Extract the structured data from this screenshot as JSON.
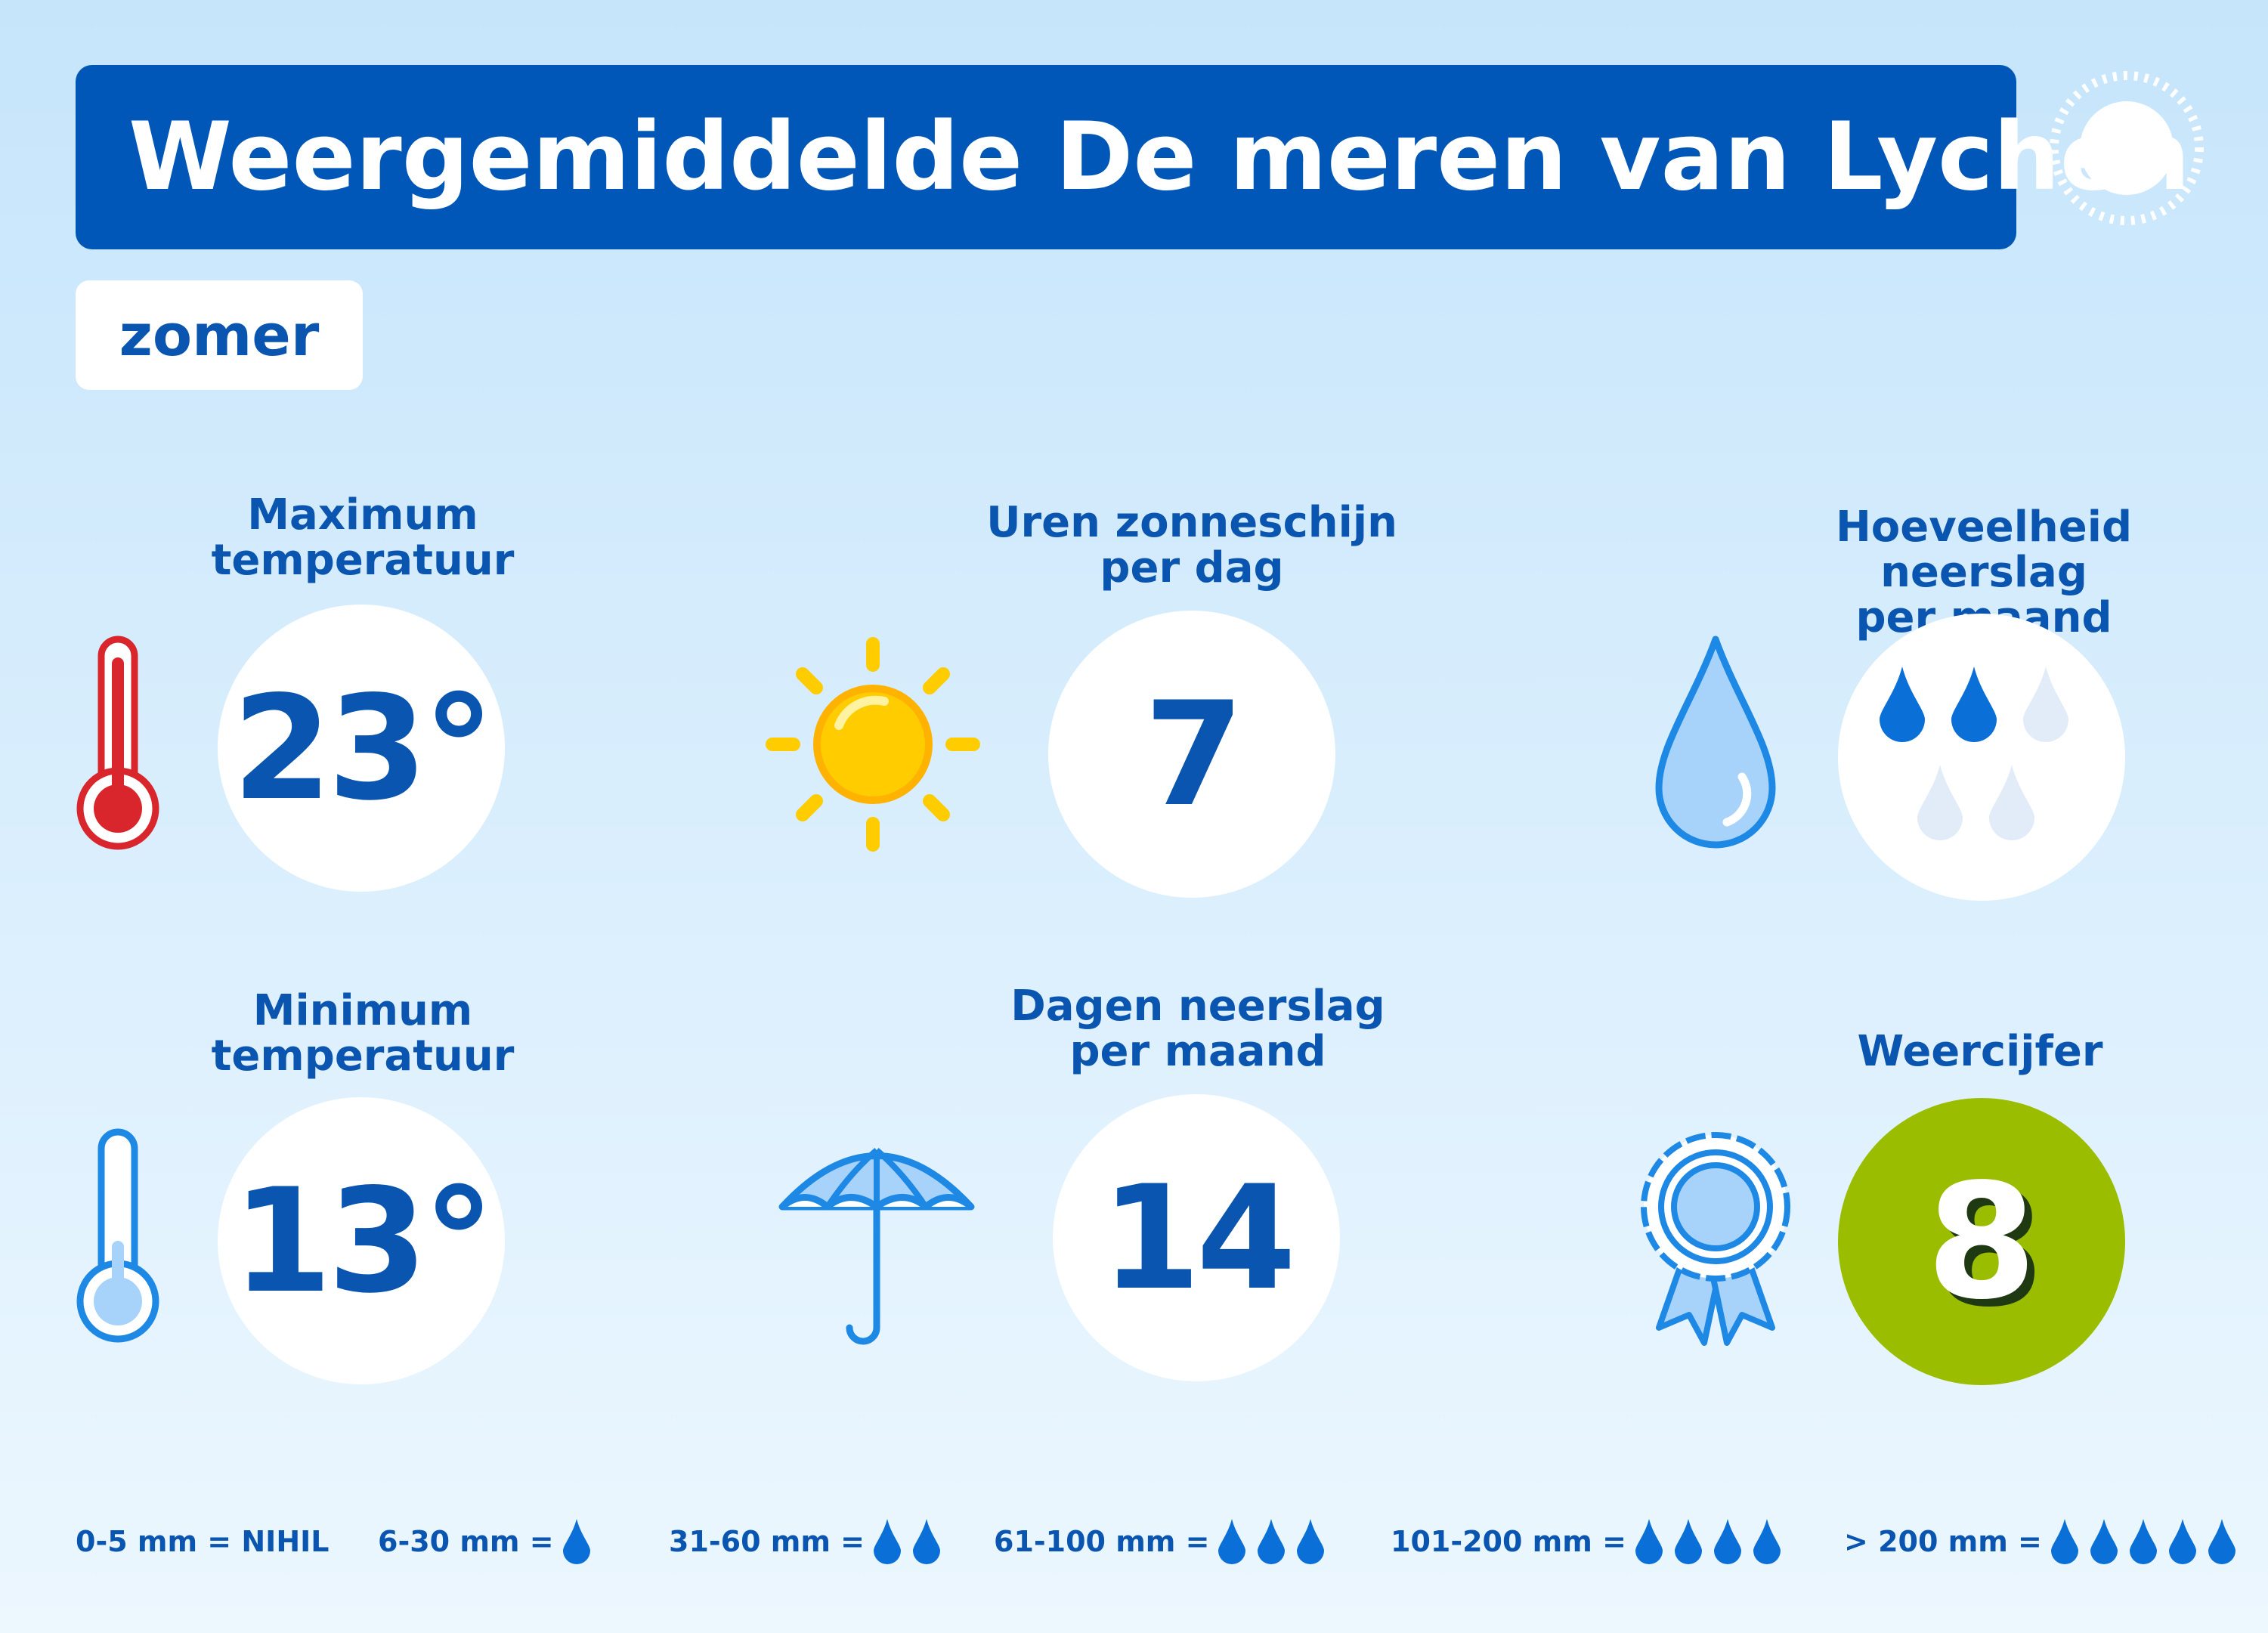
{
  "header": {
    "title": "Weergemiddelde De meren van Lychen",
    "sun_icon": "sun-icon"
  },
  "season": "zomer",
  "stats": {
    "max_temp": {
      "label_line1": "Maximum",
      "label_line2": "temperatuur",
      "value": "23°",
      "icon": "thermometer-hot-icon",
      "icon_color": "#d9262c"
    },
    "sun_hours": {
      "label_line1": "Uren zonneschijn",
      "label_line2": "per dag",
      "value": "7",
      "icon": "sun-icon",
      "icon_color": "#ffcc00"
    },
    "precip_amount": {
      "label_line1": "Hoeveelheid neerslag",
      "label_line2": "per maand",
      "drops_filled": 2,
      "drops_total": 5,
      "icon": "raindrop-icon"
    },
    "min_temp": {
      "label_line1": "Minimum",
      "label_line2": "temperatuur",
      "value": "13°",
      "icon": "thermometer-cold-icon",
      "icon_color": "#1e88e5"
    },
    "precip_days": {
      "label_line1": "Dagen neerslag",
      "label_line2": "per maand",
      "value": "14",
      "icon": "umbrella-icon"
    },
    "weather_score": {
      "label_line1": "Weercijfer",
      "value": "8",
      "icon": "award-rosette-icon",
      "circle_color": "#9bbd00"
    }
  },
  "legend": [
    {
      "text": "0-5 mm = NIHIL",
      "drops": 0
    },
    {
      "text": "6-30 mm =",
      "drops": 1
    },
    {
      "text": "31-60 mm =",
      "drops": 2
    },
    {
      "text": "61-100 mm =",
      "drops": 3
    },
    {
      "text": "101-200 mm =",
      "drops": 4
    },
    {
      "text": "> 200 mm =",
      "drops": 5
    }
  ],
  "colors": {
    "primary_blue": "#0057b8",
    "text_blue": "#0a55b0",
    "drop_blue": "#0a6fd6",
    "drop_faded": "#e2ecf8",
    "score_green": "#9bbd00"
  }
}
